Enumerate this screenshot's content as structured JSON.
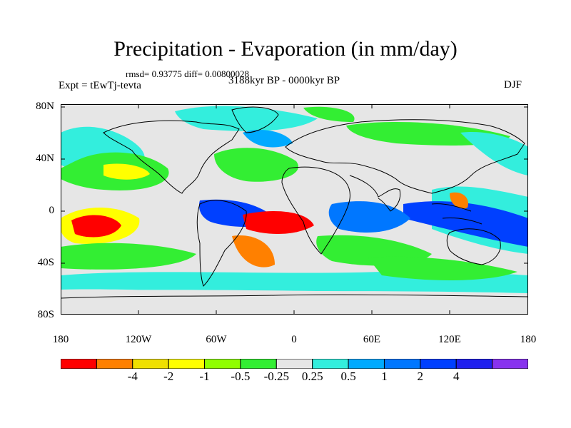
{
  "title": "Precipitation - Evaporation (in mm/day)",
  "stats": "rmsd= 0.93775 diff= 0.00800028",
  "experiment": "Expt = tEwTj-tevta",
  "period": "3188kyr BP - 0000kyr BP",
  "season": "DJF",
  "lat_labels": [
    "80N",
    "40N",
    "0",
    "40S",
    "80S"
  ],
  "lon_labels": [
    "180",
    "120W",
    "60W",
    "0",
    "60E",
    "120E",
    "180"
  ],
  "colorbar": {
    "colors": [
      "#ff0000",
      "#ff8000",
      "#f0e000",
      "#ffff00",
      "#90ff00",
      "#33ee33",
      "#e6e6e6",
      "#33eedd",
      "#00aaff",
      "#0077ff",
      "#0040ff",
      "#2020ee",
      "#8833ee"
    ],
    "labels": [
      "-4",
      "-2",
      "-1",
      "-0.5",
      "-0.25",
      "0.25",
      "0.5",
      "1",
      "2",
      "4"
    ]
  },
  "map_colors": {
    "land": "#e6e6e6",
    "ocean_neutral": "#e6e6e6",
    "coast": "#000000"
  }
}
